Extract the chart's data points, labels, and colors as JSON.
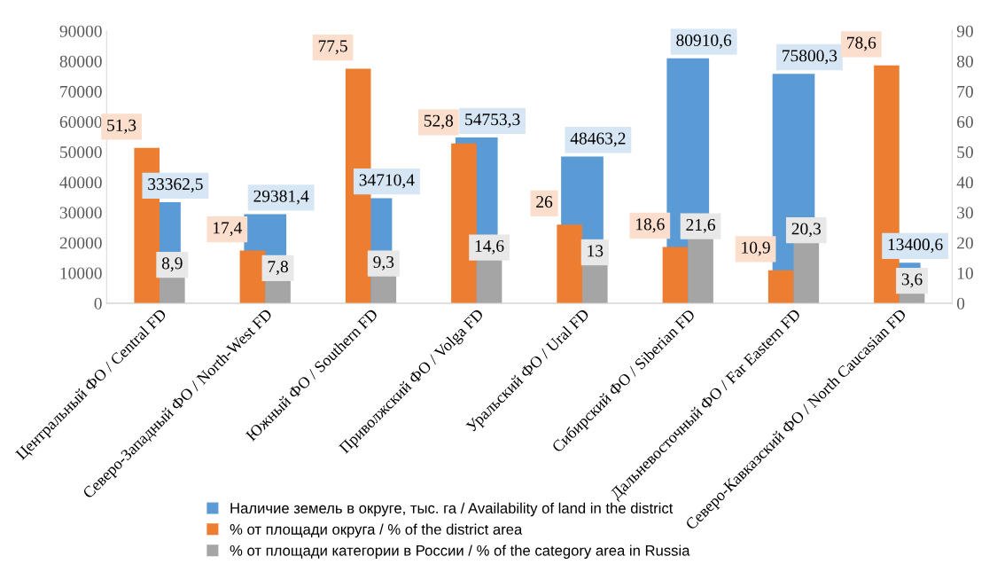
{
  "chart_data": {
    "type": "bar",
    "categories": [
      "Центральный ФО / Central FD",
      "Северо-Западный ФО / North-West FD",
      "Южный ФО / Southern FD",
      "Приволжский ФО / Volga FD",
      "Уральский ФО / Ural FD",
      "Сибирский ФО / Siberian FD",
      "Дальневосточный ФО / Far Eastern FD",
      "Северо-Кавказский ФО / North Caucasian FD"
    ],
    "series": [
      {
        "name": "Наличие земель в округе, тыс. га / Availability of land in the district",
        "color": "#5b9bd5",
        "values": [
          33362.5,
          29381.4,
          34710.4,
          54753.3,
          48463.2,
          80910.6,
          75800.3,
          13400.6
        ],
        "value_labels": [
          "33362,5",
          "29381,4",
          "34710,4",
          "54753,3",
          "48463,2",
          "80910,6",
          "75800,3",
          "13400,6"
        ]
      },
      {
        "name": "% от площади округа / % of the district area",
        "color": "#ed7d31",
        "axis": "y2",
        "values": [
          51.3,
          17.4,
          77.5,
          52.8,
          26,
          18.6,
          10.9,
          78.6
        ],
        "value_labels": [
          "51,3",
          "17,4",
          "77,5",
          "52,8",
          "26",
          "18,6",
          "10,9",
          "78,6"
        ]
      },
      {
        "name": "% от площади категории в России / % of the category area in Russia",
        "color": "#a5a5a5",
        "axis": "y2",
        "values": [
          8.9,
          7.8,
          9.3,
          14.6,
          13,
          21.6,
          20.3,
          3.6
        ],
        "value_labels": [
          "8,9",
          "7,8",
          "9,3",
          "14,6",
          "13",
          "21,6",
          "20,3",
          "3,6"
        ]
      }
    ],
    "ylim": [
      0,
      90000
    ],
    "yticks": [
      0,
      10000,
      20000,
      30000,
      40000,
      50000,
      60000,
      70000,
      80000,
      90000
    ],
    "y2lim": [
      0,
      90
    ],
    "y2ticks": [
      0,
      10,
      20,
      30,
      40,
      50,
      60,
      70,
      80,
      90
    ],
    "grid": false,
    "legend": "bottom"
  }
}
